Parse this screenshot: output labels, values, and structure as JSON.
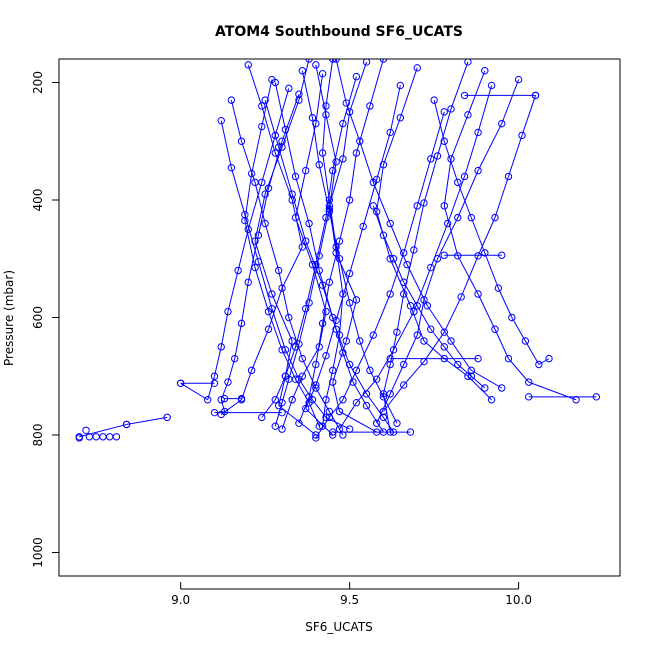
{
  "chart_data": {
    "type": "line",
    "title": "ATOM4 Southbound SF6_UCATS",
    "xlabel": "SF6_UCATS",
    "ylabel": "Pressure (mbar)",
    "xlim": [
      8.64,
      10.3
    ],
    "ylim": [
      1040,
      160
    ],
    "y_reversed": true,
    "xticks": [
      9.0,
      9.5,
      10.0
    ],
    "xtick_labels": [
      "9.0",
      "9.5",
      "10.0"
    ],
    "yticks": [
      200,
      400,
      600,
      800,
      1000
    ],
    "ytick_labels": [
      "200",
      "400",
      "600",
      "800",
      "1000"
    ],
    "grid": false,
    "legend": "none",
    "color": "#0000ff",
    "marker": "open-circle",
    "series": [
      {
        "x": [
          9.38,
          9.35,
          9.3,
          9.25,
          9.22,
          9.27,
          9.33,
          9.31,
          9.29,
          9.4
        ],
        "y": [
          160,
          230,
          310,
          390,
          470,
          560,
          640,
          700,
          750,
          800
        ]
      },
      {
        "x": [
          9.55,
          9.5,
          9.48,
          9.44,
          9.46,
          9.52,
          9.49,
          9.45,
          9.47,
          9.58
        ],
        "y": [
          165,
          250,
          330,
          410,
          490,
          570,
          640,
          710,
          760,
          795
        ]
      },
      {
        "x": [
          9.2,
          9.24,
          9.28,
          9.33,
          9.36,
          9.3,
          9.26,
          9.21,
          9.18,
          9.12
        ],
        "y": [
          170,
          240,
          320,
          400,
          480,
          550,
          620,
          690,
          740,
          765
        ]
      },
      {
        "x": [
          9.7,
          9.65,
          9.6,
          9.58,
          9.62,
          9.68,
          9.72,
          9.78,
          9.85,
          9.92
        ],
        "y": [
          175,
          260,
          340,
          420,
          500,
          580,
          640,
          670,
          700,
          740
        ]
      },
      {
        "x": [
          9.9,
          9.85,
          9.8,
          9.78,
          9.82,
          9.88,
          9.93,
          9.97,
          10.03,
          10.17
        ],
        "y": [
          180,
          255,
          330,
          410,
          495,
          560,
          620,
          670,
          710,
          740
        ]
      },
      {
        "x": [
          9.42,
          9.4,
          9.37,
          9.34,
          9.39,
          9.43,
          9.41,
          9.36,
          9.33,
          9.3
        ],
        "y": [
          185,
          270,
          350,
          430,
          510,
          590,
          650,
          700,
          740,
          790
        ]
      },
      {
        "x": [
          9.6,
          9.56,
          9.52,
          9.5,
          9.47,
          9.44,
          9.42,
          9.4,
          9.38,
          9.35
        ],
        "y": [
          160,
          240,
          320,
          400,
          470,
          540,
          610,
          680,
          735,
          780
        ]
      },
      {
        "x": [
          9.28,
          9.31,
          9.34,
          9.38,
          9.41,
          9.45,
          9.48,
          9.51,
          9.55,
          9.6
        ],
        "y": [
          200,
          280,
          360,
          440,
          520,
          600,
          660,
          710,
          750,
          795
        ]
      },
      {
        "x": [
          10.0,
          9.95,
          9.88,
          9.82,
          9.76,
          9.72,
          9.7,
          9.66,
          9.62,
          9.58
        ],
        "y": [
          195,
          270,
          350,
          430,
          500,
          570,
          630,
          680,
          730,
          780
        ]
      },
      {
        "x": [
          9.32,
          9.28,
          9.24,
          9.2,
          9.17,
          9.14,
          9.12,
          9.1,
          9.08,
          9.0
        ],
        "y": [
          210,
          290,
          370,
          450,
          520,
          590,
          650,
          700,
          740,
          712
        ]
      },
      {
        "x": [
          9.46,
          9.49,
          9.53,
          9.57,
          9.62,
          9.67,
          9.73,
          9.8,
          9.86,
          9.95
        ],
        "y": [
          160,
          235,
          300,
          370,
          440,
          510,
          580,
          640,
          690,
          720
        ]
      },
      {
        "x": [
          9.35,
          9.3,
          9.26,
          9.23,
          9.2,
          9.18,
          9.16,
          9.14,
          9.12,
          9.13
        ],
        "y": [
          220,
          300,
          380,
          460,
          540,
          610,
          670,
          710,
          740,
          760
        ]
      },
      {
        "x": [
          9.65,
          9.62,
          9.58,
          9.54,
          9.5,
          9.46,
          9.43,
          9.4,
          9.37,
          9.45
        ],
        "y": [
          205,
          285,
          365,
          445,
          525,
          605,
          665,
          715,
          755,
          800
        ]
      },
      {
        "x": [
          9.25,
          9.29,
          9.33,
          9.37,
          9.42,
          9.46,
          9.5,
          9.55,
          9.6,
          9.63
        ],
        "y": [
          230,
          310,
          390,
          470,
          545,
          620,
          680,
          730,
          770,
          795
        ]
      },
      {
        "x": [
          9.78,
          9.74,
          9.7,
          9.66,
          9.62,
          9.57,
          9.52,
          9.48,
          9.44,
          9.4
        ],
        "y": [
          250,
          330,
          410,
          490,
          560,
          630,
          690,
          740,
          770,
          805
        ]
      },
      {
        "x": [
          9.4,
          9.43,
          9.46,
          9.44,
          9.41,
          9.38,
          9.35,
          9.32,
          9.3,
          9.28
        ],
        "y": [
          170,
          255,
          335,
          415,
          495,
          575,
          645,
          705,
          745,
          785
        ]
      },
      {
        "x": [
          9.15,
          9.18,
          9.22,
          9.25,
          9.29,
          9.32,
          9.36,
          9.4,
          9.44,
          9.48
        ],
        "y": [
          230,
          300,
          370,
          440,
          520,
          600,
          670,
          720,
          760,
          800
        ]
      },
      {
        "x": [
          9.92,
          9.88,
          9.84,
          9.79,
          9.74,
          9.69,
          9.63,
          9.58,
          9.52,
          9.47
        ],
        "y": [
          205,
          285,
          360,
          440,
          515,
          590,
          655,
          705,
          745,
          790
        ]
      },
      {
        "x": [
          9.52,
          9.48,
          9.45,
          9.43,
          9.4,
          9.37,
          9.34,
          9.31,
          9.28,
          9.24
        ],
        "y": [
          190,
          270,
          350,
          430,
          510,
          585,
          650,
          700,
          740,
          770
        ]
      },
      {
        "x": [
          9.36,
          9.39,
          9.41,
          9.44,
          9.47,
          9.5,
          9.53,
          9.56,
          9.6,
          9.64
        ],
        "y": [
          180,
          260,
          340,
          420,
          500,
          575,
          640,
          690,
          735,
          780
        ]
      },
      {
        "x": [
          9.12,
          9.15,
          9.19,
          9.23,
          9.27,
          9.31,
          9.35,
          9.39,
          9.43,
          9.5
        ],
        "y": [
          265,
          345,
          425,
          505,
          585,
          655,
          705,
          740,
          770,
          790
        ]
      },
      {
        "x": [
          9.75,
          9.78,
          9.82,
          9.86,
          9.9,
          9.94,
          9.98,
          10.02,
          10.06,
          10.09
        ],
        "y": [
          230,
          300,
          370,
          430,
          490,
          550,
          600,
          640,
          680,
          670
        ]
      },
      {
        "x": [
          10.05,
          10.01,
          9.97,
          9.93,
          9.88,
          9.83,
          9.78,
          9.72,
          9.66,
          9.6
        ],
        "y": [
          222,
          290,
          360,
          430,
          495,
          565,
          625,
          675,
          715,
          760
        ]
      },
      {
        "x": [
          9.57,
          9.6,
          9.63,
          9.66,
          9.7,
          9.74,
          9.78,
          9.82,
          9.86,
          9.9
        ],
        "y": [
          410,
          460,
          500,
          540,
          580,
          620,
          650,
          680,
          700,
          720
        ]
      },
      {
        "x": [
          9.45,
          9.43,
          9.42,
          9.44,
          9.46,
          9.48,
          9.47,
          9.45,
          9.43,
          9.42
        ],
        "y": [
          160,
          240,
          320,
          400,
          480,
          560,
          630,
          690,
          740,
          785
        ]
      },
      {
        "x": [
          9.27,
          9.24,
          9.21,
          9.19,
          9.22,
          9.26,
          9.3,
          9.34,
          9.38,
          9.41
        ],
        "y": [
          195,
          275,
          355,
          435,
          515,
          590,
          655,
          705,
          745,
          785
        ]
      },
      {
        "x": [
          9.85,
          9.8,
          9.76,
          9.72,
          9.69,
          9.66,
          9.64,
          9.62,
          9.6,
          9.62
        ],
        "y": [
          165,
          245,
          325,
          405,
          485,
          560,
          625,
          680,
          730,
          795
        ]
      }
    ],
    "near_surface_points": {
      "x": [
        8.7,
        8.73,
        8.75,
        8.77,
        8.79,
        8.81,
        8.72
      ],
      "y": [
        805,
        803,
        803,
        803,
        803,
        803,
        792
      ]
    },
    "horizontal_segments": [
      {
        "x": [
          9.0,
          9.1
        ],
        "y": [
          712,
          712
        ]
      },
      {
        "x": [
          9.13,
          9.18
        ],
        "y": [
          738,
          738
        ]
      },
      {
        "x": [
          9.1,
          9.3
        ],
        "y": [
          762,
          762
        ]
      },
      {
        "x": [
          9.78,
          9.95
        ],
        "y": [
          494,
          494
        ]
      },
      {
        "x": [
          9.62,
          9.88
        ],
        "y": [
          670,
          670
        ]
      },
      {
        "x": [
          9.84,
          10.05
        ],
        "y": [
          222,
          222
        ]
      },
      {
        "x": [
          10.03,
          10.23
        ],
        "y": [
          735,
          735
        ]
      },
      {
        "x": [
          9.45,
          9.68
        ],
        "y": [
          795,
          795
        ]
      },
      {
        "x": [
          8.7,
          8.84
        ],
        "y": [
          803,
          782
        ]
      },
      {
        "x": [
          8.84,
          8.96
        ],
        "y": [
          782,
          770
        ]
      }
    ]
  }
}
